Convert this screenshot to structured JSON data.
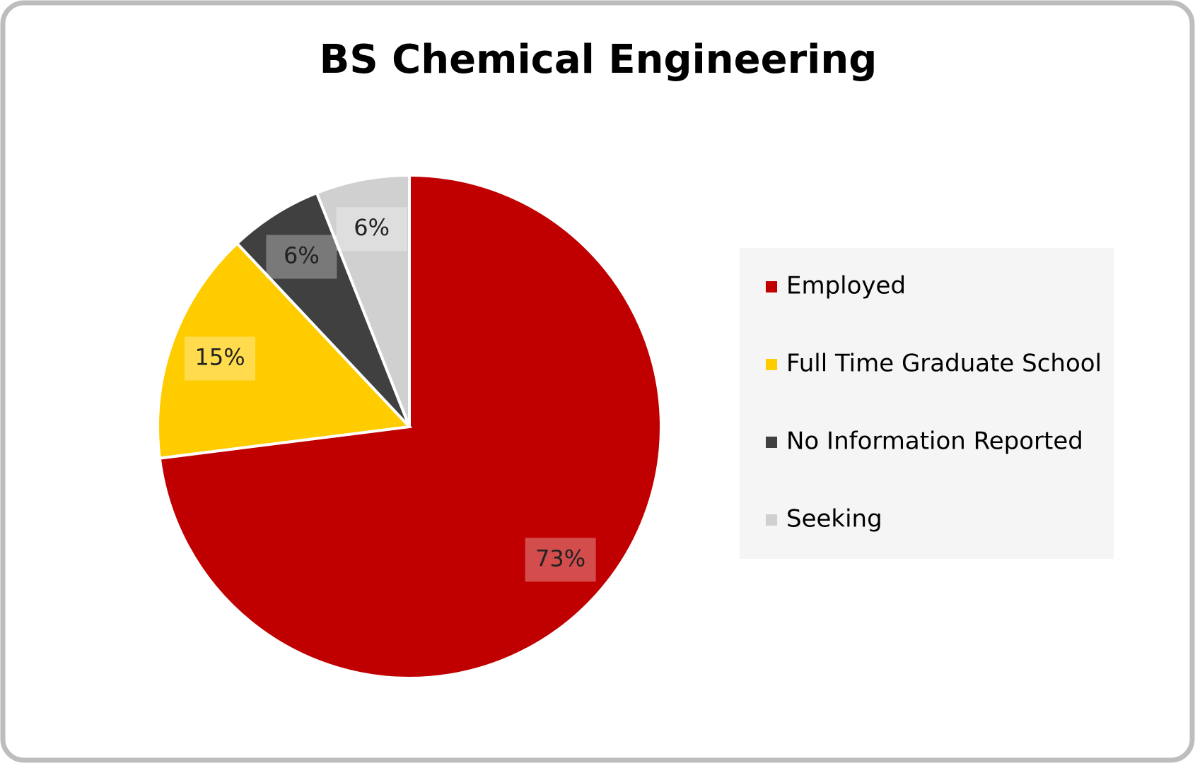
{
  "chart_data": {
    "type": "pie",
    "title": "BS Chemical Engineering",
    "categories": [
      "Employed",
      "Full Time Graduate School",
      "No Information Reported",
      "Seeking"
    ],
    "values": [
      73,
      15,
      6,
      6
    ],
    "value_labels": [
      "73%",
      "15%",
      "6%",
      "6%"
    ],
    "colors": [
      "#c00000",
      "#ffcc00",
      "#404040",
      "#d0d0d0"
    ],
    "legend": "right"
  }
}
